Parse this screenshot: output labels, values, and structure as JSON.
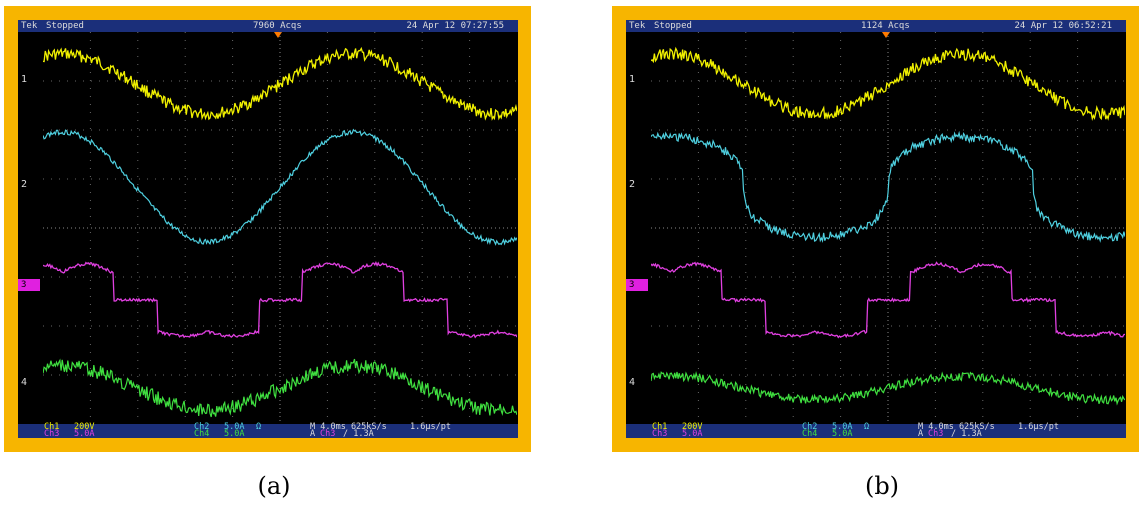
{
  "panels": [
    {
      "caption": "(a)",
      "header": {
        "brand": "Tek",
        "status": "Stopped",
        "acquisitions": "7960 Acqs",
        "timestamp": "24 Apr 12 07:27:55"
      },
      "channel_markers": [
        "1",
        "2",
        "3",
        "4"
      ],
      "readout": {
        "ch1": "Ch1",
        "ch1_scale": "200V",
        "ch3": "Ch3",
        "ch3_scale": "5.0A",
        "ch2": "Ch2",
        "ch2_scale": "5.0A",
        "ch4": "Ch4",
        "ch4_scale": "5.0A",
        "ohm": "Ω",
        "timebase": "M 4.0ms 625kS/s",
        "sample": "1.6µs/pt",
        "trigger_prefix": "A",
        "trigger_ch": "Ch3",
        "trigger_level": "/ 1.3A"
      },
      "waveform_shapes": {
        "ch2": "sinusoidal",
        "ch3": "stepped",
        "ch4": "noisy-sinusoidal"
      }
    },
    {
      "caption": "(b)",
      "header": {
        "brand": "Tek",
        "status": "Stopped",
        "acquisitions": "1124 Acqs",
        "timestamp": "24 Apr 12 06:52:21"
      },
      "channel_markers": [
        "1",
        "2",
        "3",
        "4"
      ],
      "readout": {
        "ch1": "Ch1",
        "ch1_scale": "200V",
        "ch3": "Ch3",
        "ch3_scale": "5.0A",
        "ch2": "Ch2",
        "ch2_scale": "5.0A",
        "ch4": "Ch4",
        "ch4_scale": "5.0A",
        "ohm": "Ω",
        "timebase": "M 4.0ms 625kS/s",
        "sample": "1.6µs/pt",
        "trigger_prefix": "A",
        "trigger_ch": "Ch3",
        "trigger_level": "/ 1.3A"
      },
      "waveform_shapes": {
        "ch2": "flattened",
        "ch3": "stepped",
        "ch4": "flat-noisy"
      }
    }
  ],
  "colors": {
    "frame": "#f7b500",
    "ch1": "#f0f000",
    "ch2": "#4fd0e0",
    "ch3": "#e040e0",
    "ch4": "#40e040",
    "bar": "#1b2f7a"
  }
}
